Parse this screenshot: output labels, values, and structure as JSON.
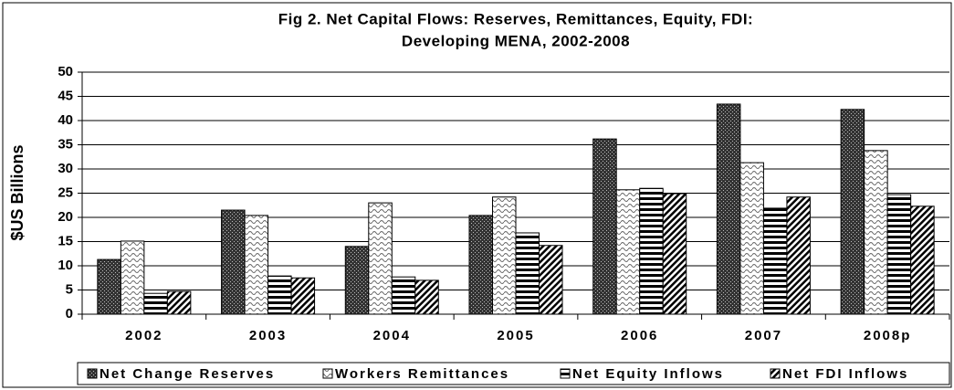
{
  "chart_data": {
    "type": "bar",
    "title": [
      "Fig 2. Net Capital Flows: Reserves, Remittances, Equity, FDI:",
      "Developing MENA, 2002-2008"
    ],
    "y_label": "$US Billions",
    "categories": [
      "2002",
      "2003",
      "2004",
      "2005",
      "2006",
      "2007",
      "2008p"
    ],
    "series": [
      {
        "name": "Net Change Reserves",
        "values": [
          11.3,
          21.5,
          14,
          20.4,
          36.2,
          43.4,
          42.3
        ]
      },
      {
        "name": "Workers Remittances",
        "values": [
          15.1,
          20.4,
          23,
          24.2,
          25.7,
          31.3,
          33.8
        ]
      },
      {
        "name": "Net Equity Inflows",
        "values": [
          4.3,
          7.9,
          7.7,
          16.8,
          26,
          21.9,
          24.7
        ]
      },
      {
        "name": "Net FDI Inflows",
        "values": [
          4.7,
          7.5,
          7,
          14.2,
          24.9,
          24.2,
          22.3
        ]
      }
    ],
    "ylim": [
      0,
      50
    ],
    "yticks": [
      0,
      5,
      10,
      15,
      20,
      25,
      30,
      35,
      40,
      45,
      50
    ],
    "grid": true,
    "legend": "bottom"
  }
}
